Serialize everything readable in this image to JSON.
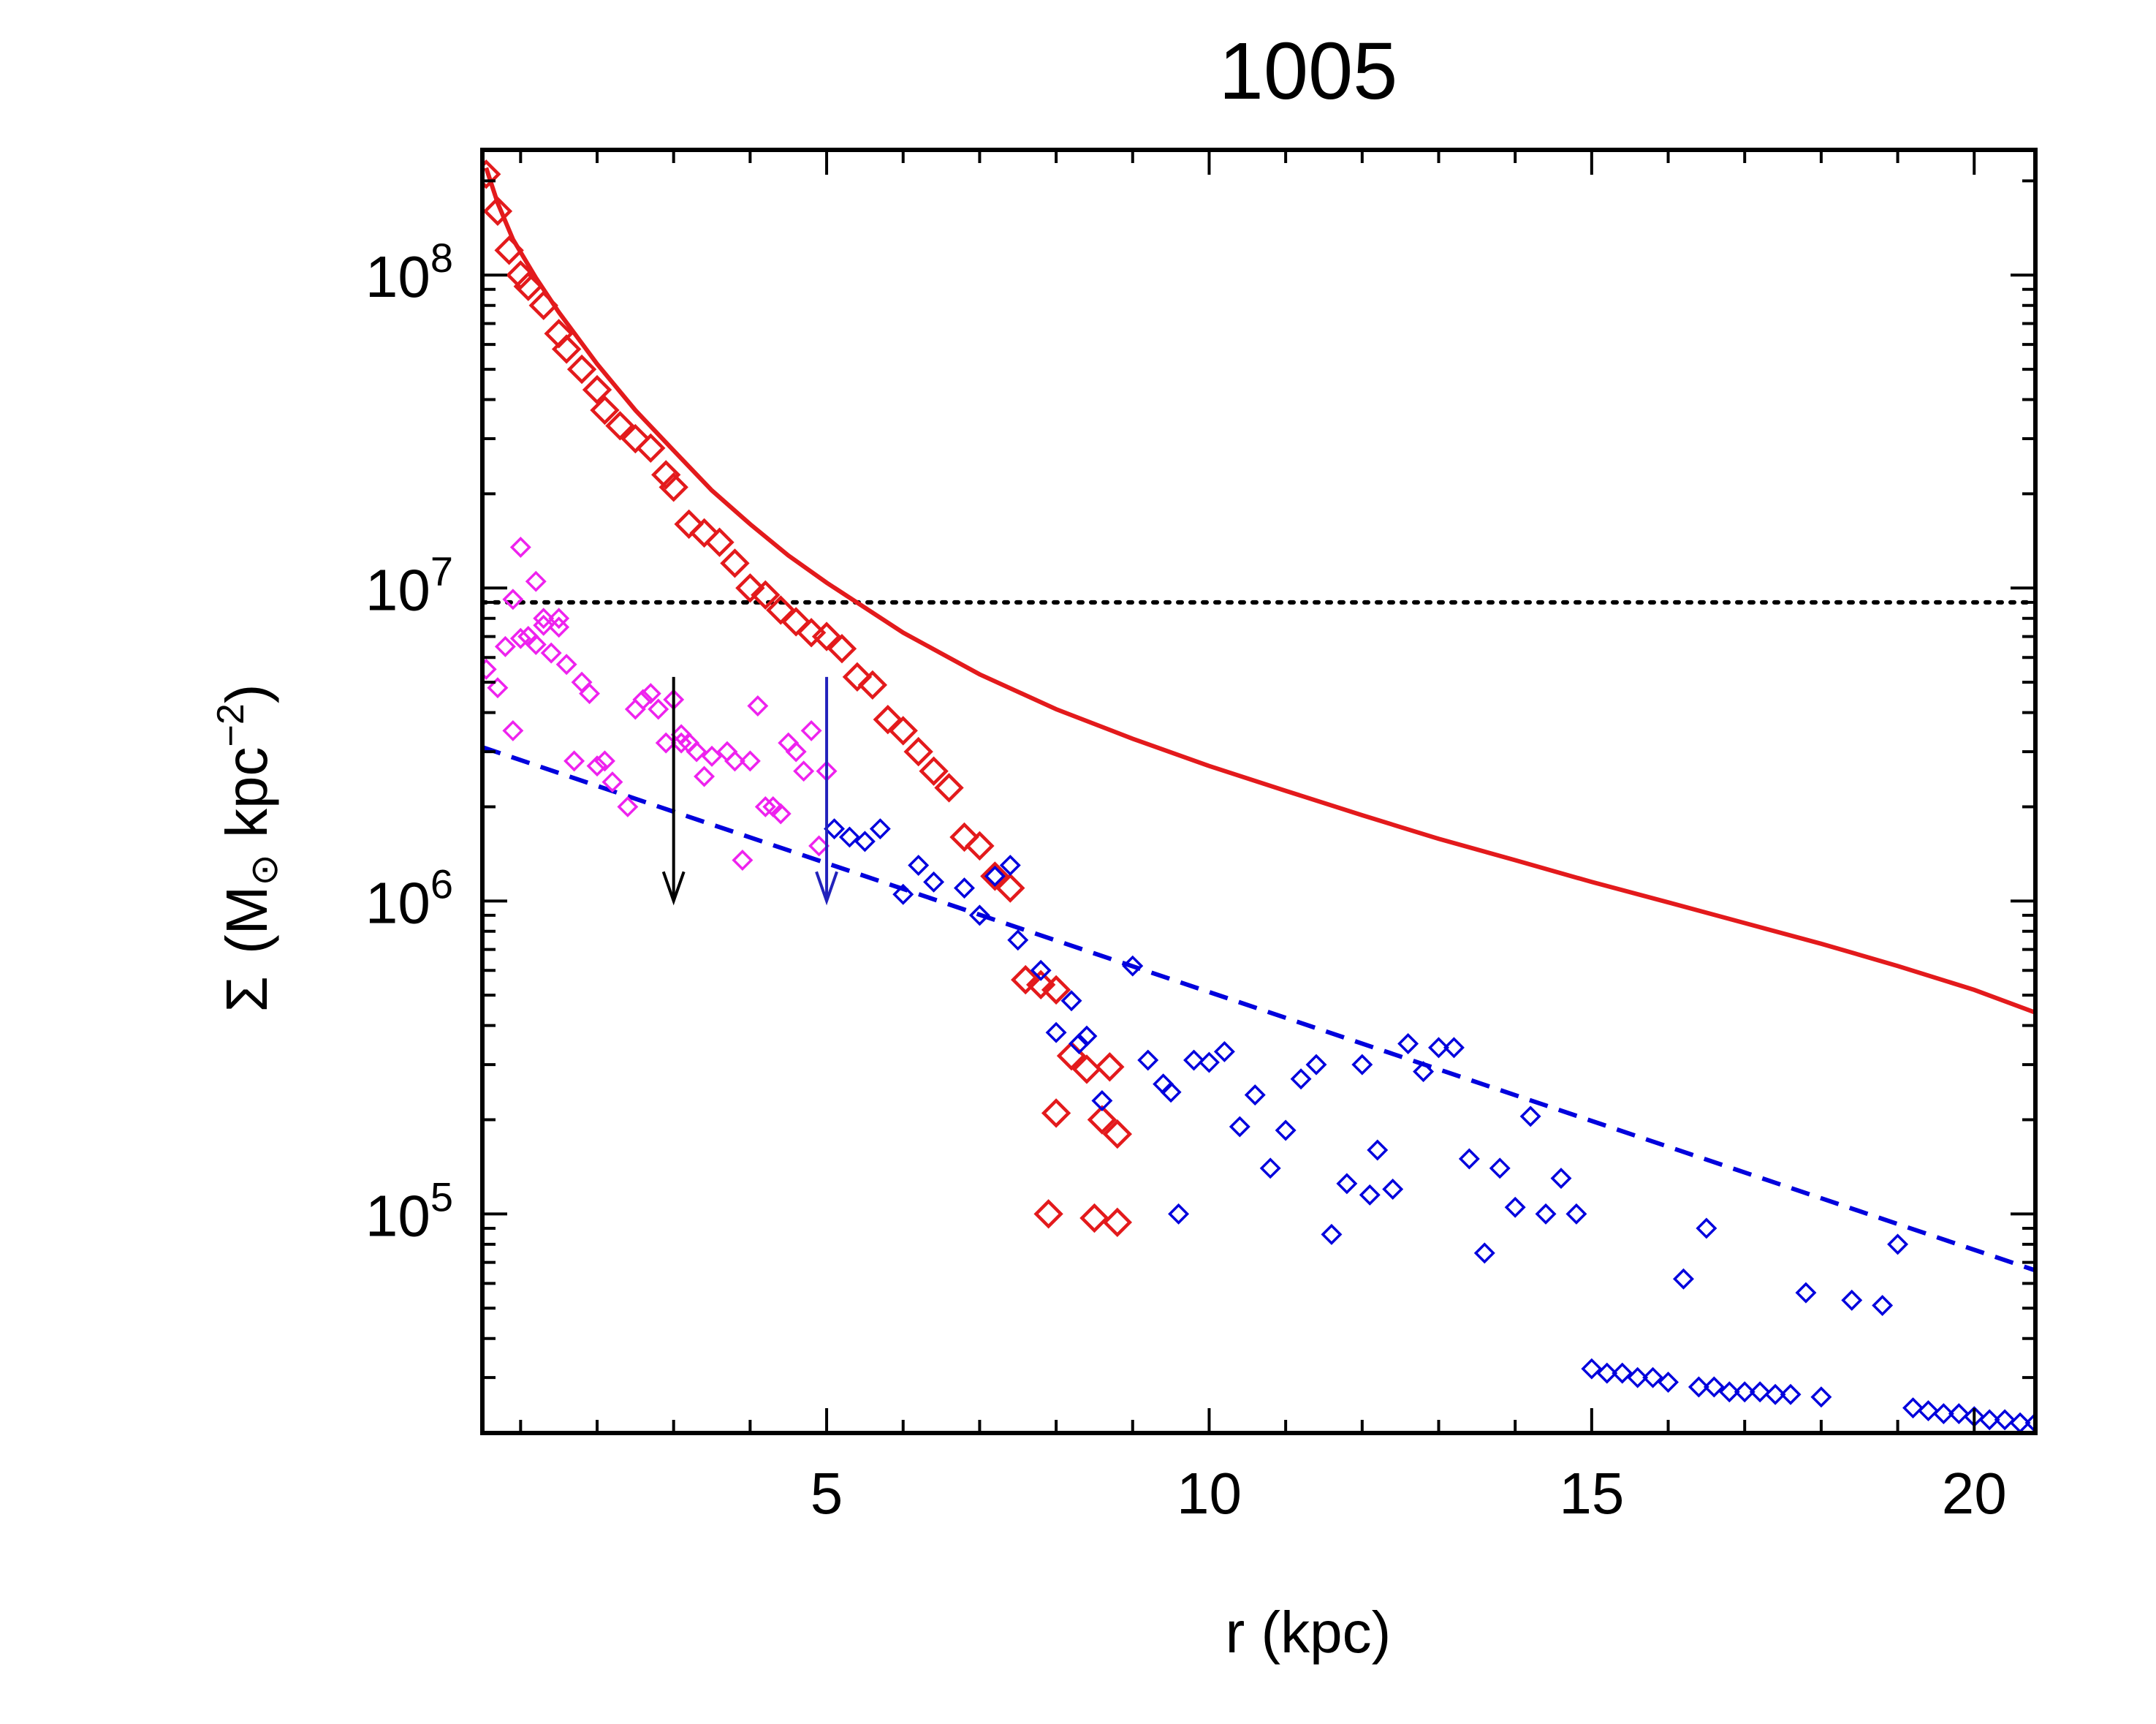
{
  "chart_data": {
    "type": "scatter",
    "title": "1005",
    "xlabel": "r (kpc)",
    "ylabel": {
      "sigma": "Σ",
      "open": "(M",
      "sun": "⊙",
      "mid": " kpc",
      "sup": "−2",
      "close": ")"
    },
    "xlim": [
      0.5,
      20.8
    ],
    "ylim_log10": [
      4.3,
      8.4
    ],
    "x_ticks": [
      {
        "value": 5,
        "label": "5"
      },
      {
        "value": 10,
        "label": "10"
      },
      {
        "value": 15,
        "label": "15"
      },
      {
        "value": 20,
        "label": "20"
      }
    ],
    "y_ticks": [
      {
        "exp": 5,
        "base": "10",
        "power": "5"
      },
      {
        "exp": 6,
        "base": "10",
        "power": "6"
      },
      {
        "exp": 7,
        "base": "10",
        "power": "7"
      },
      {
        "exp": 8,
        "base": "10",
        "power": "8"
      }
    ],
    "colors": {
      "red": "#e31a1c",
      "blue": "#0000dd",
      "magenta": "#ee22ee",
      "black": "#000000",
      "arrow_blue": "#2222bb"
    },
    "reference_line": {
      "name": "threshold",
      "y": 9000000,
      "style": "dotted"
    },
    "arrows": [
      {
        "name": "black-arrow",
        "x": 3.0,
        "y_from": 5200000,
        "y_to": 1000000,
        "color": "black"
      },
      {
        "name": "blue-arrow",
        "x": 5.0,
        "y_from": 5200000,
        "y_to": 1000000,
        "color": "arrow_blue"
      }
    ],
    "fit_lines": [
      {
        "name": "red-solid-fit",
        "style": "solid",
        "color": "red",
        "x": [
          0.55,
          0.7,
          0.9,
          1.2,
          1.5,
          2.0,
          2.5,
          3.0,
          3.5,
          4.0,
          4.5,
          5.0,
          6.0,
          7.0,
          8.0,
          9.0,
          10.0,
          11.0,
          12.0,
          13.0,
          14.0,
          15.0,
          16.0,
          17.0,
          18.0,
          19.0,
          20.0,
          20.8
        ],
        "y": [
          220000000,
          170000000,
          130000000,
          98000000,
          76000000,
          52000000,
          37000000,
          27500000,
          20500000,
          16000000,
          12700000,
          10400000,
          7200000,
          5300000,
          4100000,
          3300000,
          2700000,
          2250000,
          1880000,
          1580000,
          1350000,
          1150000,
          990000,
          850000,
          730000,
          620000,
          520000,
          440000
        ]
      },
      {
        "name": "blue-dashed-fit",
        "style": "dashed",
        "color": "blue",
        "x": [
          0.5,
          20.8
        ],
        "y": [
          3100000,
          66000.0
        ]
      }
    ],
    "series": [
      {
        "name": "red-diamonds",
        "color": "red",
        "marker": "diamond-large",
        "x": [
          0.55,
          0.7,
          0.85,
          1.0,
          1.1,
          1.3,
          1.5,
          1.6,
          1.8,
          2.0,
          2.1,
          2.3,
          2.5,
          2.7,
          2.9,
          3.0,
          3.2,
          3.4,
          3.6,
          3.8,
          4.0,
          4.2,
          4.4,
          4.6,
          4.8,
          5.0,
          5.2,
          5.4,
          5.6,
          5.8,
          6.0,
          6.2,
          6.4,
          6.6,
          6.8,
          7.0,
          7.2,
          7.4,
          7.6,
          7.8,
          8.0,
          8.2,
          8.4,
          8.6,
          8.8,
          7.9,
          8.5,
          8.8,
          8.0,
          8.7
        ],
        "y": [
          210000000,
          160000000,
          120000000,
          100000000,
          92000000,
          80000000,
          65000000,
          58000000,
          50000000,
          43000000,
          37000000,
          33000000,
          30000000,
          28000000,
          23000000,
          21000000,
          16000000,
          15000000,
          14000000,
          12000000,
          10000000,
          9500000,
          8500000,
          7800000,
          7200000,
          7000000,
          6400000,
          5200000,
          4900000,
          3800000,
          3500000,
          3000000,
          2600000,
          2300000,
          1600000,
          1500000,
          1200000,
          1100000,
          560000,
          540000,
          520000,
          320000,
          290000,
          200000,
          180000,
          100000,
          97000,
          94000,
          210000,
          295000
        ]
      },
      {
        "name": "magenta-diamonds",
        "color": "magenta",
        "marker": "diamond-small",
        "x": [
          0.55,
          0.7,
          0.8,
          0.9,
          1.0,
          1.1,
          1.2,
          1.3,
          1.4,
          1.5,
          1.6,
          1.7,
          1.8,
          1.9,
          2.0,
          2.1,
          2.2,
          2.4,
          2.6,
          2.7,
          2.8,
          2.9,
          3.0,
          3.1,
          3.2,
          3.3,
          3.4,
          3.5,
          3.7,
          3.8,
          3.9,
          4.0,
          4.1,
          4.2,
          4.3,
          4.4,
          4.5,
          4.6,
          4.7,
          4.8,
          4.9,
          5.0,
          1.0,
          1.2,
          0.9,
          1.1,
          1.3,
          1.5,
          2.5,
          3.1
        ],
        "y": [
          5500000,
          4800000,
          6500000,
          3500000,
          6900000,
          7000000,
          6600000,
          7600000,
          6200000,
          8000000,
          5700000,
          2800000,
          5000000,
          4600000,
          2700000,
          2800000,
          2400000,
          2000000,
          4400000,
          4600000,
          4100000,
          3200000,
          4400000,
          3400000,
          3200000,
          3000000,
          2500000,
          2900000,
          3000000,
          2800000,
          1350000,
          2800000,
          4200000,
          2000000,
          2000000,
          1900000,
          3200000,
          3000000,
          2600000,
          3500000,
          1500000,
          2600000,
          13500000,
          10500000,
          9200000,
          7000000,
          8000000,
          7500000,
          4100000,
          3200000
        ]
      },
      {
        "name": "blue-diamonds",
        "color": "blue",
        "marker": "diamond-small",
        "x": [
          5.1,
          5.3,
          5.5,
          5.7,
          6.0,
          6.2,
          6.4,
          6.8,
          7.0,
          7.2,
          7.5,
          7.8,
          8.0,
          8.2,
          8.4,
          8.6,
          9.0,
          9.2,
          9.4,
          9.6,
          9.8,
          10.0,
          10.2,
          10.4,
          10.6,
          10.8,
          11.0,
          11.2,
          11.4,
          11.6,
          11.8,
          12.0,
          12.2,
          12.4,
          12.6,
          12.8,
          13.0,
          13.2,
          13.4,
          13.6,
          13.8,
          14.0,
          14.2,
          14.4,
          14.6,
          14.8,
          15.0,
          15.2,
          15.4,
          15.6,
          15.8,
          16.0,
          16.2,
          16.4,
          16.6,
          16.8,
          17.0,
          17.2,
          17.4,
          17.6,
          17.8,
          18.0,
          18.4,
          18.8,
          19.0,
          19.2,
          19.4,
          19.6,
          19.8,
          20.0,
          20.2,
          20.4,
          20.6,
          20.8,
          7.4,
          8.3,
          9.5,
          12.1,
          16.5
        ],
        "y": [
          1700000,
          1600000,
          1550000,
          1700000,
          1050000,
          1300000,
          1150000,
          1100000,
          900000,
          1200000,
          750000,
          600000,
          380000,
          480000,
          370000,
          230000,
          620000,
          310000,
          260000,
          100000,
          310000,
          305000,
          330000,
          190000,
          240000,
          140000,
          185000,
          270000,
          300000,
          86000,
          125000,
          300000,
          160000,
          120000,
          350000,
          285000,
          340000,
          340000,
          150000,
          75000,
          140000,
          105000,
          205000,
          100000,
          130000,
          100000,
          32000,
          31000,
          31000,
          30000,
          30000,
          29000,
          62000,
          28000,
          28000,
          27000,
          27000,
          27000,
          26500,
          26500,
          56000,
          26000,
          53000,
          51000,
          80000,
          24000,
          23500,
          23000,
          23000,
          22500,
          22000,
          22000,
          21500,
          21500,
          1300000,
          350000,
          245000,
          115000,
          90000
        ]
      }
    ]
  }
}
